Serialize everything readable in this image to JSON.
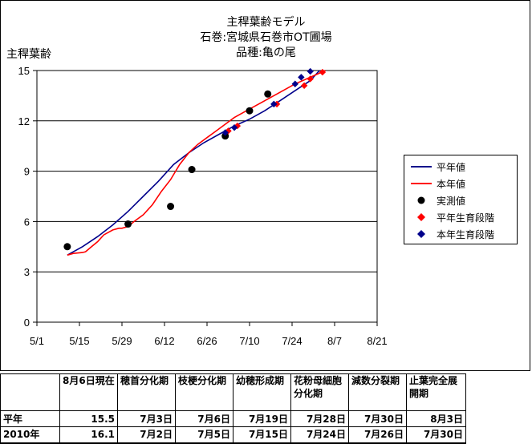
{
  "chart_data": {
    "type": "line",
    "title_lines": [
      "主稈葉齢モデル",
      "石巻:宮城県石巻市OT圃場",
      "品種:亀の尾"
    ],
    "ylabel": "主稈葉齢",
    "xlabel": "",
    "ylim": [
      0,
      15
    ],
    "yticks": [
      0,
      3,
      6,
      9,
      12,
      15
    ],
    "x_tick_labels": [
      "5/1",
      "5/15",
      "5/29",
      "6/12",
      "6/26",
      "7/10",
      "7/24",
      "8/7",
      "8/21"
    ],
    "x_tick_days": [
      0,
      14,
      28,
      42,
      56,
      70,
      84,
      98,
      112
    ],
    "grid": true,
    "legend_position": "right",
    "series": [
      {
        "name": "平年値",
        "kind": "line",
        "color": "#00008b",
        "points": [
          [
            10,
            4.0
          ],
          [
            15,
            4.5
          ],
          [
            20,
            5.1
          ],
          [
            25,
            5.8
          ],
          [
            30,
            6.6
          ],
          [
            35,
            7.5
          ],
          [
            40,
            8.4
          ],
          [
            45,
            9.4
          ],
          [
            50,
            10.1
          ],
          [
            55,
            10.7
          ],
          [
            60,
            11.2
          ],
          [
            65,
            11.7
          ],
          [
            70,
            12.1
          ],
          [
            75,
            12.6
          ],
          [
            80,
            13.2
          ],
          [
            85,
            13.8
          ],
          [
            90,
            14.4
          ],
          [
            93,
            15.0
          ]
        ]
      },
      {
        "name": "本年値",
        "kind": "line",
        "color": "#ff0000",
        "points": [
          [
            10,
            4.0
          ],
          [
            12,
            4.1
          ],
          [
            15,
            4.15
          ],
          [
            16,
            4.2
          ],
          [
            18,
            4.5
          ],
          [
            20,
            4.8
          ],
          [
            22,
            5.2
          ],
          [
            25,
            5.5
          ],
          [
            27,
            5.6
          ],
          [
            28,
            5.6
          ],
          [
            30,
            5.7
          ],
          [
            32,
            6.0
          ],
          [
            35,
            6.4
          ],
          [
            38,
            7.0
          ],
          [
            41,
            7.8
          ],
          [
            44,
            8.5
          ],
          [
            47,
            9.4
          ],
          [
            50,
            10.1
          ],
          [
            53,
            10.6
          ],
          [
            56,
            11.0
          ],
          [
            59,
            11.4
          ],
          [
            62,
            11.8
          ],
          [
            65,
            12.2
          ],
          [
            70,
            12.7
          ],
          [
            75,
            13.2
          ],
          [
            80,
            13.7
          ],
          [
            85,
            14.2
          ],
          [
            90,
            14.6
          ],
          [
            95,
            15.0
          ]
        ]
      },
      {
        "name": "実測値",
        "kind": "marker",
        "color": "#000000",
        "marker": "circle",
        "points": [
          [
            10,
            4.5
          ],
          [
            30,
            5.85
          ],
          [
            44,
            6.9
          ],
          [
            51,
            9.1
          ],
          [
            62,
            11.1
          ],
          [
            70,
            12.6
          ],
          [
            76,
            13.6
          ]
        ]
      },
      {
        "name": "平年生育段階",
        "kind": "marker",
        "color": "#ff0000",
        "marker": "diamond",
        "points": [
          [
            63,
            11.4
          ],
          [
            66,
            11.7
          ],
          [
            79,
            13.0
          ],
          [
            88,
            14.1
          ],
          [
            90,
            14.5
          ],
          [
            94,
            14.9
          ]
        ]
      },
      {
        "name": "本年生育段階",
        "kind": "marker",
        "color": "#00008b",
        "marker": "diamond",
        "points": [
          [
            62,
            11.3
          ],
          [
            65,
            11.6
          ],
          [
            78,
            13.0
          ],
          [
            85,
            14.2
          ],
          [
            87,
            14.6
          ],
          [
            90,
            14.95
          ]
        ]
      }
    ]
  },
  "table": {
    "headers": [
      "",
      "8月6日現在",
      "穂首分化期",
      "枝梗分化期",
      "幼穂形成期",
      "花粉母細胞分化期",
      "減数分裂期",
      "止葉完全展開期"
    ],
    "rows": [
      [
        "平年",
        "15.5",
        "7月3日",
        "7月6日",
        "7月19日",
        "7月28日",
        "7月30日",
        "8月3日"
      ],
      [
        "2010年",
        "16.1",
        "7月2日",
        "7月5日",
        "7月15日",
        "7月24日",
        "7月26日",
        "7月30日"
      ]
    ]
  }
}
